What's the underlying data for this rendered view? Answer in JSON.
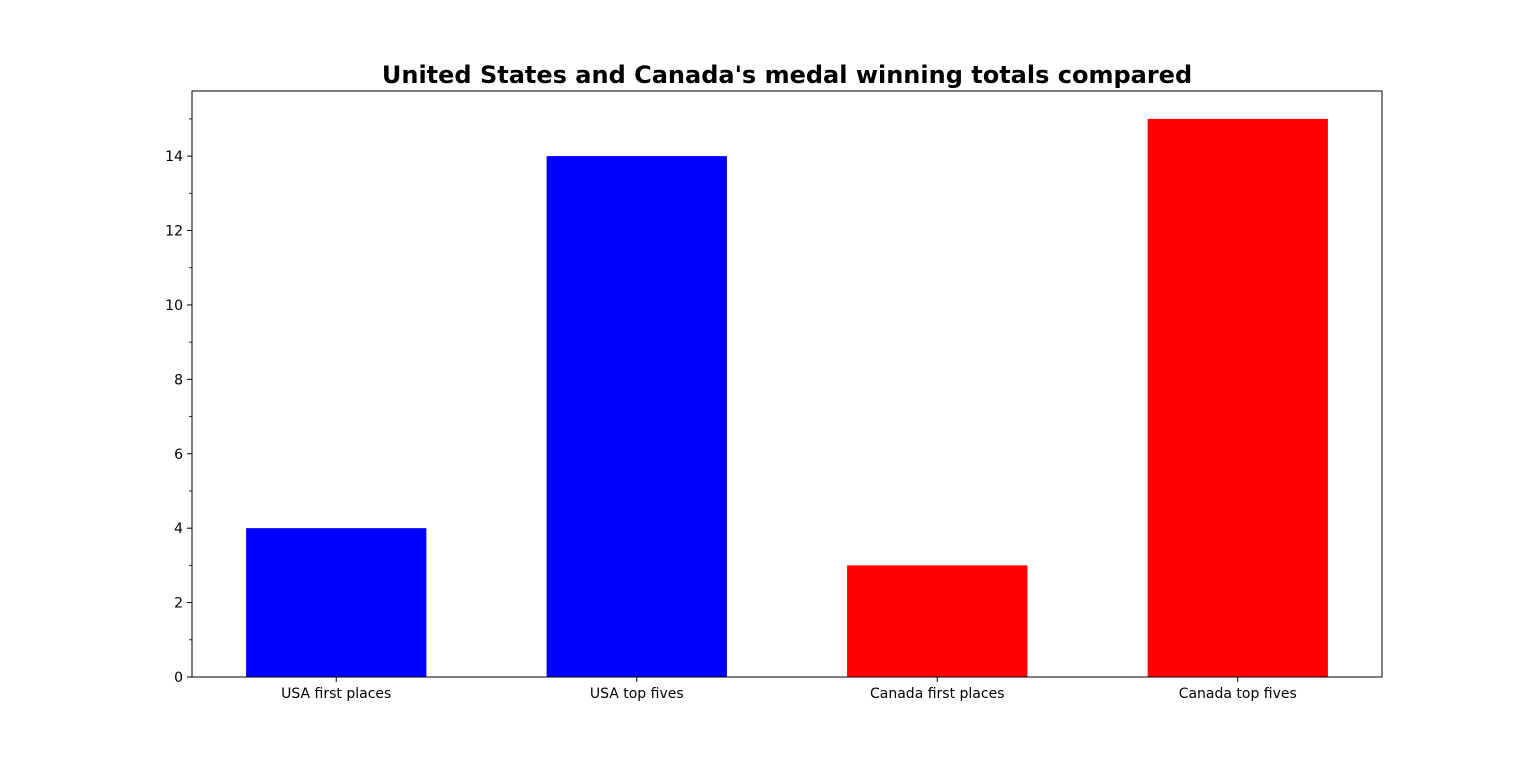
{
  "chart_data": {
    "type": "bar",
    "title": "United States and Canada's medal winning totals compared",
    "xlabel": "",
    "ylabel": "",
    "categories": [
      "USA first places",
      "USA top fives",
      "Canada first places",
      "Canada top fives"
    ],
    "values": [
      4,
      14,
      3,
      15
    ],
    "colors": [
      "#0000ff",
      "#0000ff",
      "#ff0000",
      "#ff0000"
    ],
    "ylim": [
      0,
      15.75
    ],
    "yticks": [
      0,
      2,
      4,
      6,
      8,
      10,
      12,
      14
    ],
    "yticks_minor": [
      1,
      3,
      5,
      7,
      9,
      11,
      13,
      15
    ],
    "grid": false,
    "legend": null
  }
}
